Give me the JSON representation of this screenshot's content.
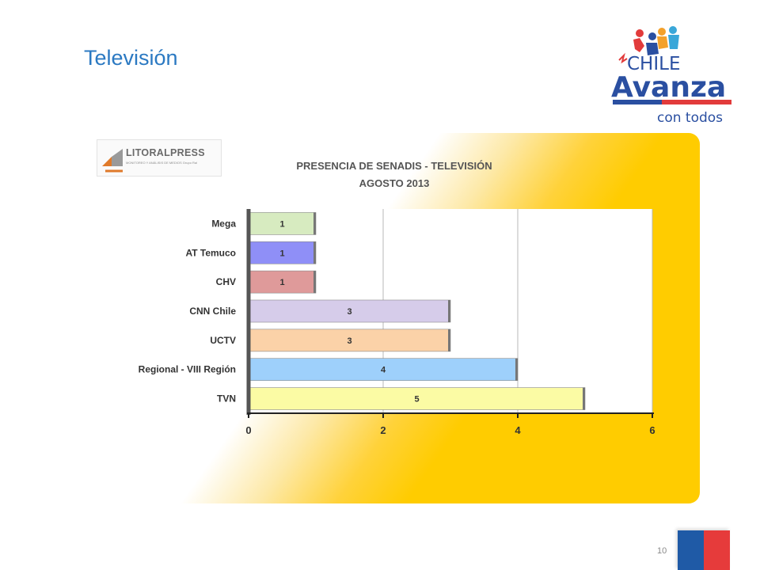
{
  "slide": {
    "title": "Televisión",
    "page_number": "10"
  },
  "logo": {
    "line1": "CHILE",
    "line2": "Avanza",
    "line3": "con todos"
  },
  "source_logo": {
    "name": "LITORALPRESS",
    "tagline": "MONITOREO Y ANÁLISIS DE MEDIOS Grupo Ral"
  },
  "colors": {
    "title": "#2b79c2",
    "chart_panel": "#ffcc00",
    "flag_blue": "#1f5aa6",
    "flag_red": "#e63b3b"
  },
  "chart_data": {
    "type": "bar",
    "orientation": "horizontal",
    "title": "PRESENCIA DE SENADIS - TELEVISIÓN",
    "subtitle": "AGOSTO 2013",
    "categories": [
      "Mega",
      "AT Temuco",
      "CHV",
      "CNN Chile",
      "UCTV",
      "Regional - VIII Región",
      "TVN"
    ],
    "values": [
      1,
      1,
      1,
      3,
      3,
      4,
      5
    ],
    "data_labels": [
      "1",
      "1",
      "1",
      "3",
      "3",
      "4",
      "5"
    ],
    "bar_colors": [
      "#d7ebc0",
      "#8f8ff7",
      "#df9a9a",
      "#d6ccea",
      "#fbd2a8",
      "#9ed0fb",
      "#fbfba4"
    ],
    "xlim": [
      0,
      6
    ],
    "xticks": [
      0,
      2,
      4,
      6
    ],
    "xtick_labels": [
      "0",
      "2",
      "4",
      "6"
    ],
    "grid": true,
    "legend": "none"
  }
}
